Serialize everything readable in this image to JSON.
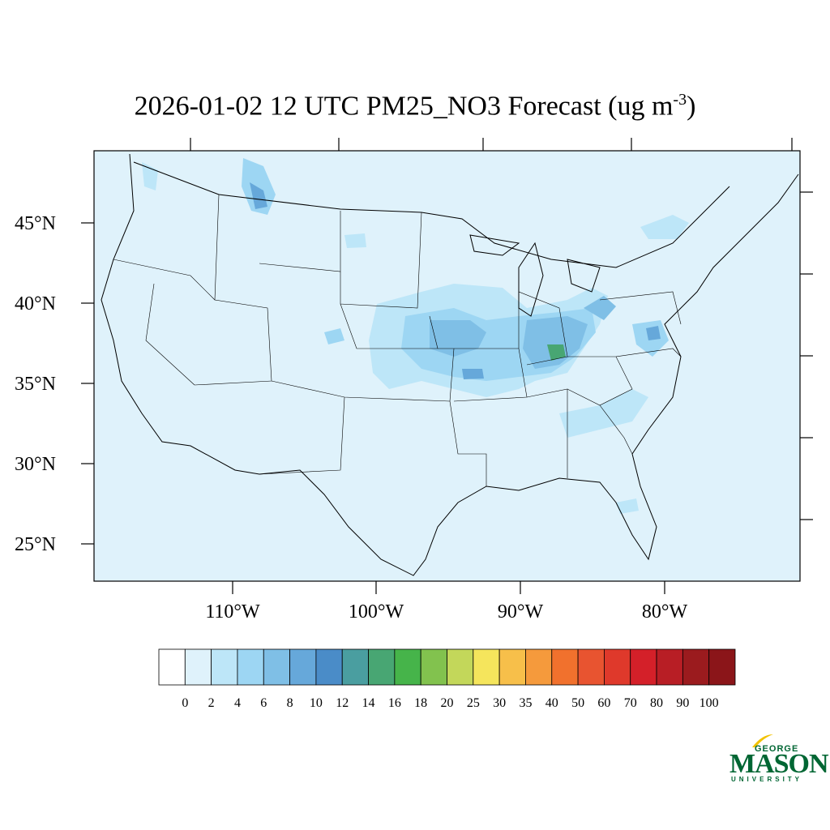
{
  "title": {
    "main": "2026-01-02 12 UTC PM25_NO3 Forecast (ug m",
    "exponent": "-3",
    "close": ")"
  },
  "map": {
    "lat_labels": [
      "45°N",
      "40°N",
      "35°N",
      "30°N",
      "25°N"
    ],
    "lon_labels": [
      "110°W",
      "100°W",
      "90°W",
      "80°W"
    ],
    "background_color": "#dff2fb"
  },
  "colorbar": {
    "labels": [
      "0",
      "2",
      "4",
      "6",
      "8",
      "10",
      "12",
      "14",
      "16",
      "18",
      "20",
      "25",
      "30",
      "35",
      "40",
      "50",
      "60",
      "70",
      "80",
      "90",
      "100"
    ],
    "colors": [
      "#ffffff",
      "#dff2fb",
      "#bde6f8",
      "#9dd6f3",
      "#7fbfe6",
      "#66a8da",
      "#4a8cc8",
      "#4a9ea0",
      "#48a673",
      "#46b44a",
      "#82c24e",
      "#c3d75a",
      "#f5e55c",
      "#f7bf4a",
      "#f59a3c",
      "#f1712d",
      "#e85430",
      "#df392b",
      "#d42029",
      "#b81e25",
      "#9b1b1e",
      "#8b1519"
    ]
  },
  "logo": {
    "george": "GEORGE",
    "mason": "MASON",
    "university": "UNIVERSITY",
    "color": "#006633",
    "accent": "#f2c200"
  }
}
